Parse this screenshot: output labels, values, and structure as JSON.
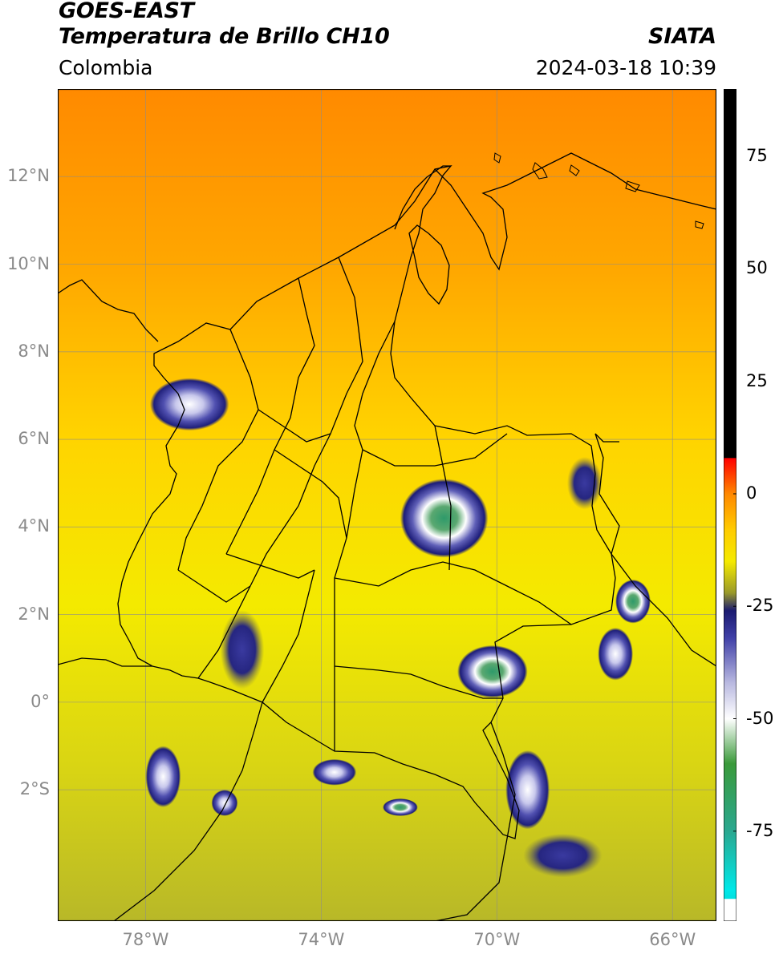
{
  "header": {
    "satellite": "GOES-EAST",
    "product": "Temperatura de Brillo CH10",
    "institution": "SIATA",
    "region": "Colombia",
    "timestamp": "2024-03-18 10:39"
  },
  "map": {
    "lon_range": [
      -80,
      -65
    ],
    "lat_range": [
      -5,
      14
    ],
    "lat_ticks": [
      {
        "value": 12,
        "label": "12°N"
      },
      {
        "value": 10,
        "label": "10°N"
      },
      {
        "value": 8,
        "label": "8°N"
      },
      {
        "value": 6,
        "label": "6°N"
      },
      {
        "value": 4,
        "label": "4°N"
      },
      {
        "value": 2,
        "label": "2°N"
      },
      {
        "value": 0,
        "label": "0°"
      },
      {
        "value": -2,
        "label": "2°S"
      }
    ],
    "lon_ticks": [
      {
        "value": -78,
        "label": "78°W"
      },
      {
        "value": -74,
        "label": "74°W"
      },
      {
        "value": -70,
        "label": "70°W"
      },
      {
        "value": -66,
        "label": "66°W"
      }
    ],
    "grid": true
  },
  "colorbar": {
    "range": [
      -95,
      90
    ],
    "ticks": [
      {
        "value": 75,
        "label": "75"
      },
      {
        "value": 50,
        "label": "50"
      },
      {
        "value": 25,
        "label": "25"
      },
      {
        "value": 0,
        "label": "0"
      },
      {
        "value": -25,
        "label": "-25"
      },
      {
        "value": -50,
        "label": "-50"
      },
      {
        "value": -75,
        "label": "-75"
      }
    ],
    "stops": [
      {
        "value": 90,
        "color": "#000000"
      },
      {
        "value": 8,
        "color": "#000000"
      },
      {
        "value": 7.9,
        "color": "#ff0000"
      },
      {
        "value": 0,
        "color": "#ff8800"
      },
      {
        "value": -8,
        "color": "#ffcc00"
      },
      {
        "value": -15,
        "color": "#f5ea00"
      },
      {
        "value": -22,
        "color": "#9a9a2a"
      },
      {
        "value": -26,
        "color": "#1a1a70"
      },
      {
        "value": -32,
        "color": "#4040a8"
      },
      {
        "value": -42,
        "color": "#b8b8e0"
      },
      {
        "value": -50,
        "color": "#ffffff"
      },
      {
        "value": -60,
        "color": "#3a9a3a"
      },
      {
        "value": -75,
        "color": "#2aa890"
      },
      {
        "value": -88,
        "color": "#00e8e8"
      },
      {
        "value": -90,
        "color": "#00e0e0"
      },
      {
        "value": -90.1,
        "color": "#ffffff"
      },
      {
        "value": -95,
        "color": "#ffffff"
      }
    ]
  },
  "storms": [
    {
      "lon": -77.0,
      "lat": 6.8,
      "rx": 0.9,
      "ry": 0.6,
      "core": "white"
    },
    {
      "lon": -71.2,
      "lat": 4.2,
      "rx": 1.0,
      "ry": 0.9,
      "core": "green"
    },
    {
      "lon": -70.1,
      "lat": 0.7,
      "rx": 0.8,
      "ry": 0.6,
      "core": "green"
    },
    {
      "lon": -66.9,
      "lat": 2.3,
      "rx": 0.4,
      "ry": 0.5,
      "core": "green"
    },
    {
      "lon": -67.3,
      "lat": 1.1,
      "rx": 0.4,
      "ry": 0.6,
      "core": "white"
    },
    {
      "lon": -69.3,
      "lat": -2.0,
      "rx": 0.5,
      "ry": 0.9,
      "core": "white"
    },
    {
      "lon": -77.6,
      "lat": -1.7,
      "rx": 0.4,
      "ry": 0.7,
      "core": "white"
    },
    {
      "lon": -73.7,
      "lat": -1.6,
      "rx": 0.5,
      "ry": 0.3,
      "core": "white"
    },
    {
      "lon": -72.2,
      "lat": -2.4,
      "rx": 0.4,
      "ry": 0.2,
      "core": "green"
    },
    {
      "lon": -76.2,
      "lat": -2.3,
      "rx": 0.3,
      "ry": 0.3,
      "core": "white"
    },
    {
      "lon": -68.0,
      "lat": 5.0,
      "rx": 0.4,
      "ry": 0.6,
      "core": "blue"
    },
    {
      "lon": -75.8,
      "lat": 1.2,
      "rx": 0.5,
      "ry": 0.9,
      "core": "blue"
    },
    {
      "lon": -68.5,
      "lat": -3.5,
      "rx": 0.9,
      "ry": 0.5,
      "core": "blue"
    }
  ]
}
